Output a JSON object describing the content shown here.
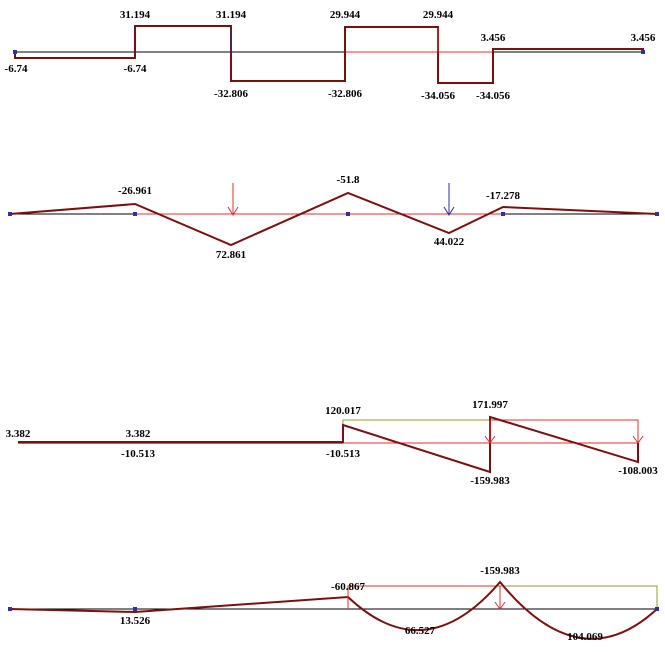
{
  "diagrams": [
    {
      "labels": [
        "-6.74",
        "-6.74",
        "31.194",
        "31.194",
        "-32.806",
        "-32.806",
        "29.944",
        "29.944",
        "-34.056",
        "-34.056",
        "3.456",
        "3.456"
      ]
    },
    {
      "labels": [
        "-26.961",
        "72.861",
        "-51.8",
        "44.022",
        "-17.278"
      ]
    },
    {
      "labels": [
        "3.382",
        "3.382",
        "-10.513",
        "-10.513",
        "120.017",
        "171.997",
        "-159.983",
        "-108.003"
      ]
    },
    {
      "labels": [
        "13.526",
        "-60.867",
        "66.527",
        "-159.983",
        "104.069"
      ]
    }
  ]
}
